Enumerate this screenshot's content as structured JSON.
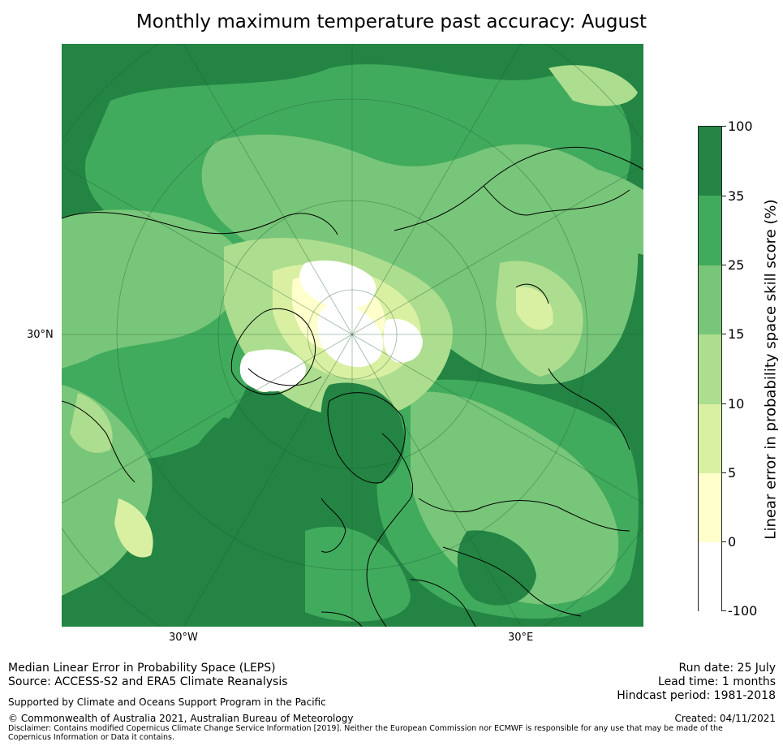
{
  "title": "Monthly maximum temperature past accuracy: August",
  "map": {
    "projection": "north-polar-stereographic",
    "lat_labels": [
      "30°N"
    ],
    "lon_labels": [
      "30°W",
      "30°E"
    ],
    "background_color": "#238443"
  },
  "colorbar": {
    "title": "Linear error in probability space skill score (%)",
    "ticks": [
      "100",
      "35",
      "25",
      "15",
      "10",
      "5",
      "0",
      "-100"
    ],
    "bins": [
      {
        "from": 35,
        "to": 100,
        "color": "#238443"
      },
      {
        "from": 25,
        "to": 35,
        "color": "#41ab5d"
      },
      {
        "from": 15,
        "to": 25,
        "color": "#78c679"
      },
      {
        "from": 10,
        "to": 15,
        "color": "#addd8e"
      },
      {
        "from": 5,
        "to": 10,
        "color": "#d9f0a3"
      },
      {
        "from": 0,
        "to": 5,
        "color": "#ffffcc"
      },
      {
        "from": -100,
        "to": 0,
        "color": "#ffffff"
      }
    ]
  },
  "footer": {
    "left_line1": "Median Linear Error in Probability Space (LEPS)",
    "left_line2": "Source: ACCESS-S2 and ERA5 Climate Reanalysis",
    "support": "Supported by Climate and Oceans Support Program in the Pacific",
    "copyright": "© Commonwealth of Australia 2021, Australian Bureau of Meteorology",
    "disclaimer": "Disclaimer: Contains modified Copernicus Climate Change Service Information [2019]. Neither the European Commission nor ECMWF is responsible for any use that may be made of the Copernicus Information or Data it contains.",
    "run_date": "Run date: 25 July",
    "lead_time": "Lead time: 1 months",
    "hindcast": "Hindcast period: 1981-2018",
    "created": "Created: 04/11/2021"
  }
}
